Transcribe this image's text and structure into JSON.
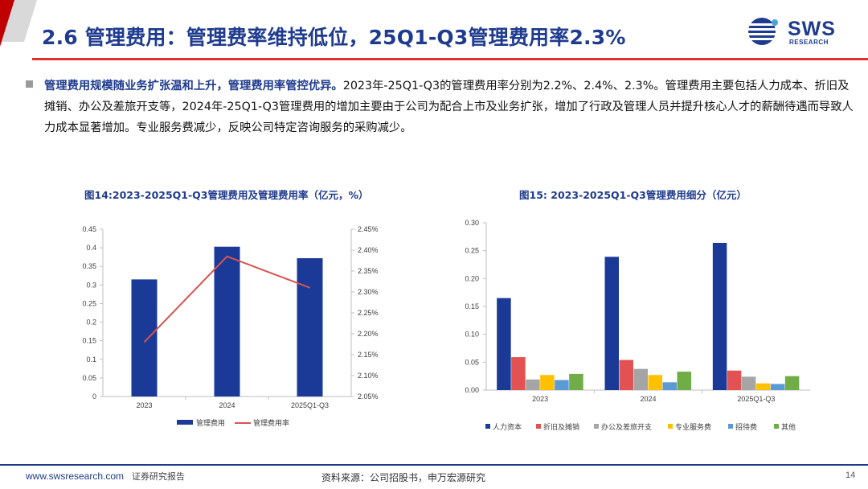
{
  "slide": {
    "title": "2.6 管理费用：管理费率维持低位，25Q1-Q3管理费用率2.3%",
    "logo_main": "SWS",
    "logo_sub": "RESEARCH",
    "bullet_bold": "管理费用规模随业务扩张温和上升，管理费用率管控优异。",
    "bullet_rest": "2023年-25Q1-Q3的管理费用率分别为2.2%、2.4%、2.3%。管理费用主要包括人力成本、折旧及摊销、办公及差旅开支等，2024年-25Q1-Q3管理费用的增加主要由于公司为配合上市及业务扩张，增加了行政及管理人员并提升核心人才的薪酬待遇而导致人力成本显著增加。专业服务费减少，反映公司特定咨询服务的采购减少。",
    "page_number": "14"
  },
  "footer": {
    "website": "www.swsresearch.com",
    "report_type": "证券研究报告",
    "source": "资料来源：公司招股书，申万宏源研究"
  },
  "colors": {
    "navy": "#1f3b8f",
    "bar_blue": "#1b3a98",
    "red_line": "#d9534f",
    "red": "#e35252",
    "gray": "#a5a5a5",
    "yellow": "#ffc000",
    "light_blue": "#5b9bd5",
    "green": "#70ad47"
  },
  "chart_data": [
    {
      "type": "bar",
      "title": "图14:2023-2025Q1-Q3管理费用及管理费用率（亿元，%）",
      "categories": [
        "2023",
        "2024",
        "2025Q1-Q3"
      ],
      "series": [
        {
          "name": "管理费用",
          "type": "bar",
          "axis": "left",
          "values": [
            0.315,
            0.403,
            0.372
          ]
        },
        {
          "name": "管理费用率",
          "type": "line",
          "axis": "right",
          "values": [
            2.18,
            2.385,
            2.31
          ]
        }
      ],
      "ylim": [
        0,
        0.45
      ],
      "yticks": [
        "0",
        "0.05",
        "0.1",
        "0.15",
        "0.2",
        "0.25",
        "0.3",
        "0.35",
        "0.4",
        "0.45"
      ],
      "y2lim": [
        2.05,
        2.45
      ],
      "y2ticks": [
        "2.05%",
        "2.10%",
        "2.15%",
        "2.20%",
        "2.25%",
        "2.30%",
        "2.35%",
        "2.40%",
        "2.45%"
      ],
      "legend": "bottom"
    },
    {
      "type": "bar",
      "title": "图15: 2023-2025Q1-Q3管理费用细分（亿元）",
      "categories": [
        "2023",
        "2024",
        "2025Q1-Q3"
      ],
      "series": [
        {
          "name": "人力资本",
          "values": [
            0.165,
            0.239,
            0.264
          ]
        },
        {
          "name": "折旧及摊销",
          "values": [
            0.059,
            0.054,
            0.035
          ]
        },
        {
          "name": "办公及差旅开支",
          "values": [
            0.019,
            0.038,
            0.024
          ]
        },
        {
          "name": "专业服务费",
          "values": [
            0.027,
            0.027,
            0.012
          ]
        },
        {
          "name": "招待费",
          "values": [
            0.018,
            0.014,
            0.011
          ]
        },
        {
          "name": "其他",
          "values": [
            0.029,
            0.033,
            0.025
          ]
        }
      ],
      "ylim": [
        0,
        0.3
      ],
      "yticks": [
        "0.00",
        "0.05",
        "0.10",
        "0.15",
        "0.20",
        "0.25",
        "0.30"
      ],
      "legend": "bottom"
    }
  ]
}
